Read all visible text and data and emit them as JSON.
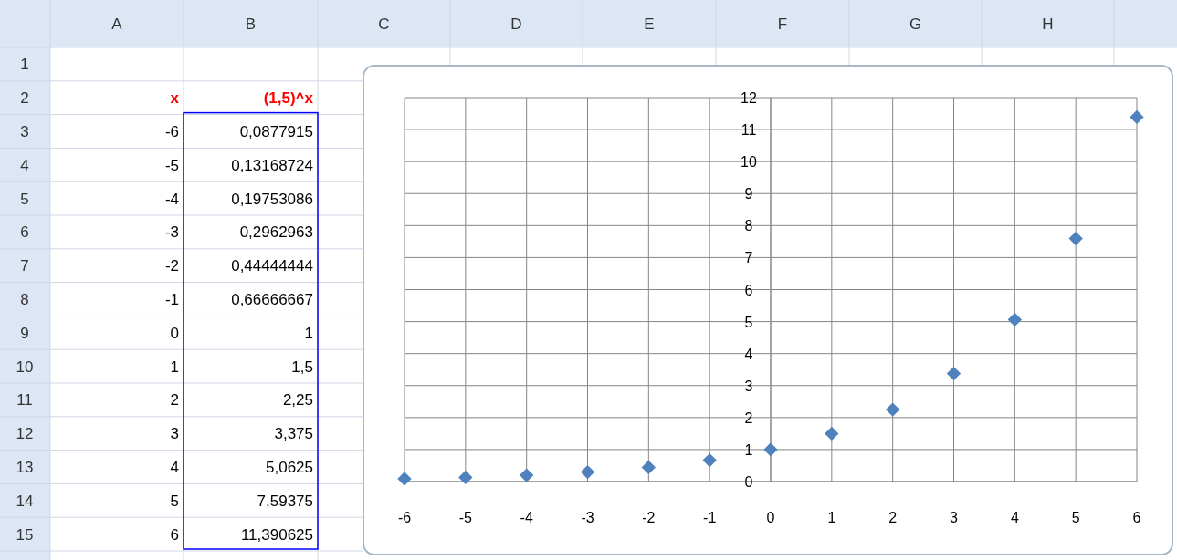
{
  "chart_data": {
    "type": "scatter",
    "x": [
      -6,
      -5,
      -4,
      -3,
      -2,
      -1,
      0,
      1,
      2,
      3,
      4,
      5,
      6
    ],
    "values": [
      0.0877915,
      0.13168724,
      0.19753086,
      0.2962963,
      0.44444444,
      0.66666667,
      1,
      1.5,
      2.25,
      3.375,
      5.0625,
      7.59375,
      11.390625
    ],
    "color": "#4f81bd",
    "marker": "diamond",
    "grid": true,
    "xlim": [
      -6,
      6
    ],
    "xticks": [
      -6,
      -5,
      -4,
      -3,
      -2,
      -1,
      0,
      1,
      2,
      3,
      4,
      5,
      6
    ],
    "ylim": [
      0,
      12
    ],
    "yticks": [
      0,
      1,
      2,
      3,
      4,
      5,
      6,
      7,
      8,
      9,
      10,
      11,
      12
    ],
    "annotations": [
      "A",
      "B",
      "C",
      "D",
      "E",
      "F",
      "G",
      "H",
      "1",
      "2",
      "3",
      "4",
      "5",
      "6",
      "7",
      "8",
      "9",
      "10",
      "11",
      "12",
      "13",
      "14",
      "15",
      "x",
      "(1,5)^x",
      "-6",
      "0,0877915",
      "-5",
      "0,13168724",
      "-4",
      "0,19753086",
      "-3",
      "0,2962963",
      "-2",
      "0,44444444",
      "-1",
      "0,66666667",
      "0",
      "1",
      "1",
      "1,5",
      "2",
      "2,25",
      "3",
      "3,375",
      "4",
      "5,0625",
      "5",
      "7,59375",
      "6",
      "11,390625"
    ]
  }
}
